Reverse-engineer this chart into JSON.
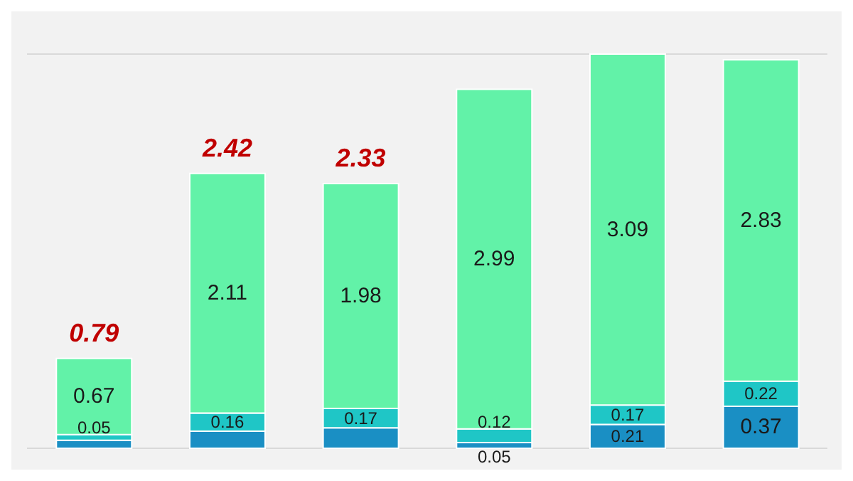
{
  "chart_data": {
    "type": "bar",
    "stacked": true,
    "categories": [
      null,
      null,
      null,
      null,
      null,
      null
    ],
    "series": [
      {
        "color": "#1a8fc4",
        "values": [
          0.07,
          0.15,
          0.18,
          0.05,
          0.21,
          0.37
        ],
        "value_labels": [
          null,
          null,
          null,
          "0.05",
          "0.21",
          "0.37"
        ]
      },
      {
        "color": "#1fc6c6",
        "values": [
          0.05,
          0.16,
          0.17,
          0.12,
          0.17,
          0.22
        ],
        "value_labels": [
          "0.05",
          "0.16",
          "0.17",
          "0.12",
          "0.17",
          "0.22"
        ]
      },
      {
        "color": "#62f2a8",
        "values": [
          0.67,
          2.11,
          1.98,
          2.99,
          3.09,
          2.83
        ],
        "value_labels": [
          "0.67",
          "2.11",
          "1.98",
          "2.99",
          "3.09",
          "2.83"
        ]
      }
    ],
    "totals": [
      "0.79",
      "2.42",
      "2.33",
      null,
      null,
      null
    ],
    "grid": "y"
  }
}
